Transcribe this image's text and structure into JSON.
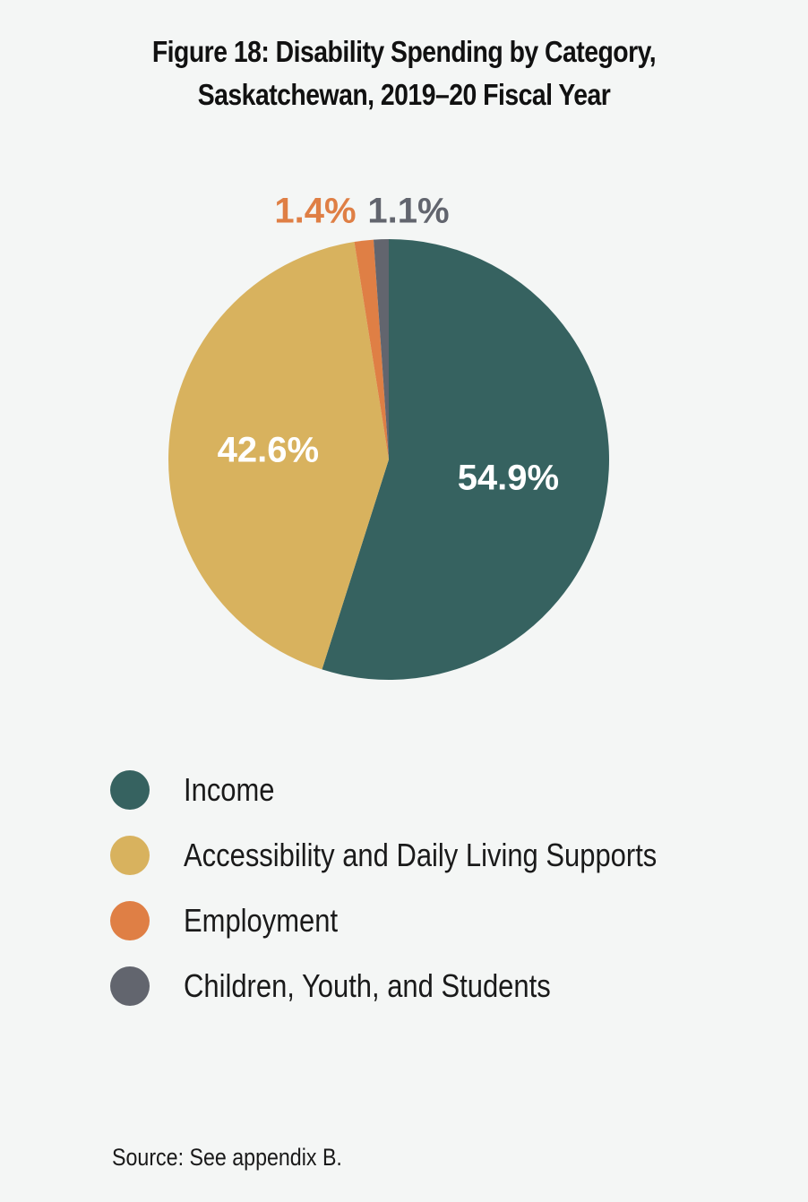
{
  "title_lines": [
    "Figure 18: Disability Spending by Category,",
    "Saskatchewan, 2019–20 Fiscal Year"
  ],
  "chart_data": {
    "type": "pie",
    "categories": [
      "Income",
      "Accessibility and Daily Living Supports",
      "Employment",
      "Children, Youth, and Students"
    ],
    "values": [
      54.9,
      42.6,
      1.4,
      1.1
    ],
    "data_labels": [
      "54.9%",
      "42.6%",
      "1.4%",
      "1.1%"
    ],
    "colors": [
      "#366260",
      "#d8b25e",
      "#df7f45",
      "#62656e"
    ],
    "label_colors": [
      "#ffffff",
      "#ffffff",
      "#df7f45",
      "#62656e"
    ],
    "label_positions": [
      "inside",
      "inside",
      "outside",
      "outside"
    ],
    "start_angle_deg": 0,
    "direction": "clockwise",
    "legend_position": "bottom"
  },
  "source": "Source: See appendix B."
}
